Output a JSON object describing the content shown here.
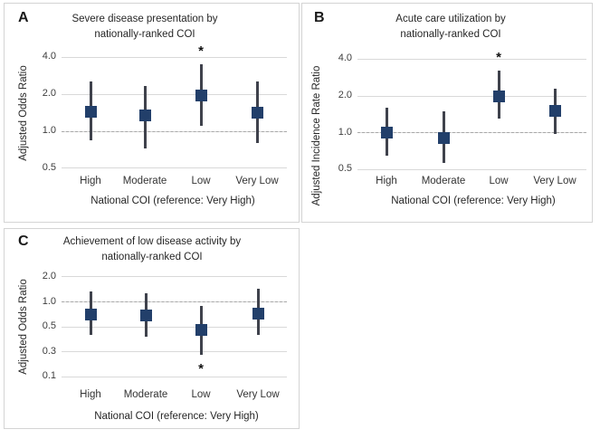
{
  "figure": {
    "colors": {
      "marker": "#223f6a",
      "whisker": "#3f424c",
      "gridline": "#d9d9d9",
      "reference_line": "#a8a8a8",
      "panel_border": "#d4d4d4",
      "text": "#262626",
      "background": "#ffffff"
    },
    "significance_marker": "*"
  },
  "chart_data": [
    {
      "type": "scatter",
      "panel_label": "A",
      "title_line1": "Severe disease presentation by",
      "title_line2": "nationally-ranked COI",
      "ylabel": "Adjusted Odds Ratio",
      "xlabel": "National COI (reference: Very High)",
      "scale": "log2",
      "ylim": [
        0.42,
        4.8
      ],
      "grid": true,
      "reference_line": 1.0,
      "yticks": [
        {
          "label": "4.0",
          "value": 4.0
        },
        {
          "label": "2.0",
          "value": 2.0
        },
        {
          "label": "1.0",
          "value": 1.0
        },
        {
          "label": "0.5",
          "value": 0.5
        }
      ],
      "categories": [
        "High",
        "Moderate",
        "Low",
        "Very Low"
      ],
      "points": [
        {
          "category": "High",
          "estimate": 1.45,
          "ci_low": 0.85,
          "ci_high": 2.55,
          "significant": false
        },
        {
          "category": "Moderate",
          "estimate": 1.35,
          "ci_low": 0.73,
          "ci_high": 2.35,
          "significant": false
        },
        {
          "category": "Low",
          "estimate": 1.95,
          "ci_low": 1.1,
          "ci_high": 3.5,
          "significant": true
        },
        {
          "category": "Very Low",
          "estimate": 1.42,
          "ci_low": 0.8,
          "ci_high": 2.55,
          "significant": false
        }
      ],
      "significance_position": "above"
    },
    {
      "type": "scatter",
      "panel_label": "B",
      "title_line1": "Acute care utilization by",
      "title_line2": "nationally-ranked COI",
      "ylabel": "Adjusted Incidence Rate Ratio",
      "xlabel": "National COI (reference: Very High)",
      "scale": "log2",
      "ylim": [
        0.42,
        4.8
      ],
      "grid": true,
      "reference_line": 1.0,
      "yticks": [
        {
          "label": "4.0",
          "value": 4.0
        },
        {
          "label": "2.0",
          "value": 2.0
        },
        {
          "label": "1.0",
          "value": 1.0
        },
        {
          "label": "0.5",
          "value": 0.5
        }
      ],
      "categories": [
        "High",
        "Moderate",
        "Low",
        "Very Low"
      ],
      "points": [
        {
          "category": "High",
          "estimate": 1.0,
          "ci_low": 0.65,
          "ci_high": 1.6,
          "significant": false
        },
        {
          "category": "Moderate",
          "estimate": 0.9,
          "ci_low": 0.57,
          "ci_high": 1.5,
          "significant": false
        },
        {
          "category": "Low",
          "estimate": 2.0,
          "ci_low": 1.3,
          "ci_high": 3.2,
          "significant": true
        },
        {
          "category": "Very Low",
          "estimate": 1.5,
          "ci_low": 0.97,
          "ci_high": 2.3,
          "significant": false
        }
      ],
      "significance_position": "above"
    },
    {
      "type": "scatter",
      "panel_label": "C",
      "title_line1": "Achievement of low disease activity by",
      "title_line2": "nationally-ranked COI",
      "ylabel": "Adjusted Odds Ratio",
      "xlabel": "National COI (reference: Very High)",
      "scale": "log2",
      "ylim": [
        0.1,
        2.4
      ],
      "grid": true,
      "reference_line": 1.0,
      "yticks": [
        {
          "label": "2.0",
          "value": 2.0
        },
        {
          "label": "1.0",
          "value": 1.0
        },
        {
          "label": "0.5",
          "value": 0.5
        },
        {
          "label": "0.3",
          "value": 0.25
        },
        {
          "label": "0.1",
          "value": 0.125
        }
      ],
      "categories": [
        "High",
        "Moderate",
        "Low",
        "Very Low"
      ],
      "points": [
        {
          "category": "High",
          "estimate": 0.7,
          "ci_low": 0.4,
          "ci_high": 1.32,
          "significant": false
        },
        {
          "category": "Moderate",
          "estimate": 0.68,
          "ci_low": 0.38,
          "ci_high": 1.27,
          "significant": false
        },
        {
          "category": "Low",
          "estimate": 0.46,
          "ci_low": 0.23,
          "ci_high": 0.9,
          "significant": true
        },
        {
          "category": "Very Low",
          "estimate": 0.73,
          "ci_low": 0.4,
          "ci_high": 1.45,
          "significant": false
        }
      ],
      "significance_position": "below"
    }
  ]
}
